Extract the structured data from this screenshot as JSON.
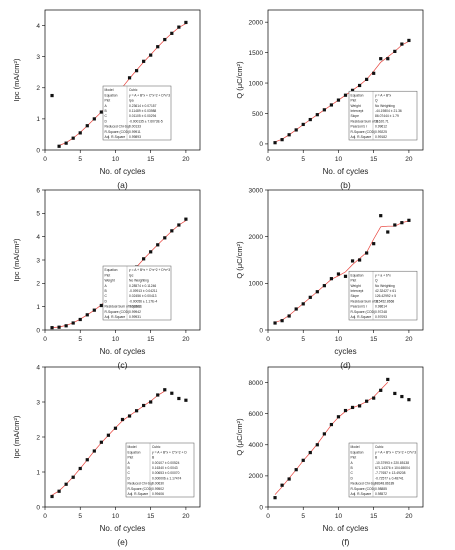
{
  "chart_data": [
    {
      "type": "scatter",
      "panel_label": "(a)",
      "xlabel": "No. of cycles",
      "ylabel": "Ipc (mA/cm²)",
      "xlim": [
        0,
        22
      ],
      "ylim": [
        0,
        4.5
      ],
      "xticks": [
        0,
        5,
        10,
        15,
        20
      ],
      "yticks": [
        0,
        1,
        2,
        3,
        4
      ],
      "x": [
        1,
        2,
        3,
        4,
        5,
        6,
        7,
        8,
        9,
        10,
        11,
        12,
        13,
        14,
        15,
        16,
        17,
        18,
        19,
        20
      ],
      "y": [
        1.75,
        0.12,
        0.22,
        0.38,
        0.55,
        0.78,
        1.0,
        1.22,
        1.45,
        1.75,
        2.0,
        2.32,
        2.55,
        2.85,
        3.05,
        3.32,
        3.55,
        3.75,
        3.95,
        4.1
      ],
      "fit": {
        "from": 2,
        "to": 20
      },
      "stats_box": {
        "position": "center",
        "rows": [
          [
            "Model",
            "Cubic"
          ],
          [
            "Equation",
            "y = A + B*x + C*x^2 + D*x^3"
          ],
          [
            "Plot",
            "Ipa"
          ],
          [
            "A",
            "0.23614 ± 0.07157"
          ],
          [
            "B",
            "0.11489 ± 0.03988"
          ],
          [
            "C",
            "0.01105 ± 0.00294"
          ],
          [
            "D",
            "-0.000135 ± 7.6073E-5"
          ],
          [
            "Reduced Chi-Sqr",
            "0.00133"
          ],
          [
            "R-Square (COD)",
            "0.99911"
          ],
          [
            "Adj. R-Square",
            "0.99893"
          ]
        ]
      }
    },
    {
      "type": "scatter",
      "panel_label": "(b)",
      "xlabel": "No. of cycles",
      "ylabel": "Q (μC/cm²)",
      "xlim": [
        0,
        22
      ],
      "ylim": [
        -100,
        2200
      ],
      "xticks": [
        0,
        5,
        10,
        15,
        20
      ],
      "yticks": [
        0,
        500,
        1000,
        1500,
        2000
      ],
      "x": [
        1,
        2,
        3,
        4,
        5,
        6,
        7,
        8,
        9,
        10,
        11,
        12,
        13,
        14,
        15,
        16,
        17,
        18,
        19,
        20
      ],
      "y": [
        20,
        70,
        150,
        230,
        320,
        400,
        480,
        560,
        640,
        720,
        800,
        880,
        960,
        1060,
        1160,
        1400,
        1400,
        1520,
        1640,
        1700
      ],
      "fit": {
        "from": 1,
        "to": 20
      },
      "stats_box": {
        "position": "right",
        "rows": [
          [
            "Equation",
            "y = A + B*x"
          ],
          [
            "Plot",
            "Q"
          ],
          [
            "Weight",
            "No Weighting"
          ],
          [
            "Intercept",
            "-44.19804 ± 21.36"
          ],
          [
            "Slope",
            "86.07444 ± 1.79"
          ],
          [
            "Residual Sum of S",
            "31620.71"
          ],
          [
            "Pearson's r",
            "0.99612"
          ],
          [
            "R-Square (COD)",
            "0.99225"
          ],
          [
            "Adj. R-Square",
            "0.99182"
          ]
        ]
      }
    },
    {
      "type": "scatter",
      "panel_label": "(c)",
      "xlabel": "No. of cycles",
      "ylabel": "Ipc (mA/cm²)",
      "xlim": [
        0,
        22
      ],
      "ylim": [
        0,
        6
      ],
      "xticks": [
        0,
        5,
        10,
        15,
        20
      ],
      "yticks": [
        0,
        1,
        2,
        3,
        4,
        5,
        6
      ],
      "x": [
        1,
        2,
        3,
        4,
        5,
        6,
        7,
        8,
        9,
        10,
        11,
        12,
        13,
        14,
        15,
        16,
        17,
        18,
        19,
        20
      ],
      "y": [
        0.1,
        0.12,
        0.18,
        0.3,
        0.45,
        0.65,
        0.85,
        1.05,
        1.35,
        1.65,
        2.0,
        2.35,
        2.7,
        3.05,
        3.35,
        3.65,
        3.95,
        4.25,
        4.5,
        4.75
      ],
      "fit": {
        "from": 1,
        "to": 20
      },
      "stats_box": {
        "position": "center",
        "rows": [
          [
            "Equation",
            "y = A + B*x + C*x^2 + D*x^3"
          ],
          [
            "Plot",
            "Ipc"
          ],
          [
            "Weight",
            "No Weighting"
          ],
          [
            "A",
            "0.28574 ± 0.11246"
          ],
          [
            "B",
            "-0.09913 ± 0.04211"
          ],
          [
            "C",
            "0.02456 ± 0.00413"
          ],
          [
            "D",
            "-0.00056 ± 1.17E-4"
          ],
          [
            "Residual Sum of Squares",
            "0.01562"
          ],
          [
            "R-Square (COD)",
            "0.99942"
          ],
          [
            "Adj. R-Square",
            "0.99931"
          ]
        ]
      }
    },
    {
      "type": "scatter",
      "panel_label": "(d)",
      "xlabel": "cycles",
      "ylabel": "Q (μC/cm²)",
      "xlim": [
        0,
        22
      ],
      "ylim": [
        0,
        3000
      ],
      "xticks": [
        0,
        5,
        10,
        15,
        20
      ],
      "yticks": [
        0,
        1000,
        2000,
        3000
      ],
      "x": [
        1,
        2,
        3,
        4,
        5,
        6,
        7,
        8,
        9,
        10,
        11,
        12,
        13,
        14,
        15,
        16,
        17,
        18,
        19,
        20
      ],
      "y": [
        150,
        200,
        300,
        450,
        560,
        700,
        820,
        950,
        1100,
        1200,
        1150,
        1480,
        1500,
        1650,
        1850,
        2450,
        2100,
        2250,
        2300,
        2350
      ],
      "fit": {
        "from": 1,
        "to": 20
      },
      "stats_box": {
        "position": "right",
        "rows": [
          [
            "Equation",
            "y = a + b*x"
          ],
          [
            "Plot",
            "Q"
          ],
          [
            "Weight",
            "No Weighting"
          ],
          [
            "Intercept",
            "42.32427 ± 61"
          ],
          [
            "Slope",
            "126.42992 ± 5"
          ],
          [
            "Residual Sum of S",
            "315452.8668"
          ],
          [
            "Pearson's r",
            "0.98614"
          ],
          [
            "R-Square (COD)",
            "0.97248"
          ],
          [
            "Adj. R-Square",
            "0.97093"
          ]
        ]
      }
    },
    {
      "type": "scatter",
      "panel_label": "(e)",
      "xlabel": "No. of cycles",
      "ylabel": "Ipc (mA/cm²)",
      "xlim": [
        0,
        22
      ],
      "ylim": [
        0,
        4
      ],
      "xticks": [
        0,
        5,
        10,
        15,
        20
      ],
      "yticks": [
        0,
        1,
        2,
        3,
        4
      ],
      "x": [
        1,
        2,
        3,
        4,
        5,
        6,
        7,
        8,
        9,
        10,
        11,
        12,
        13,
        14,
        15,
        16,
        17,
        18,
        19,
        20
      ],
      "y": [
        0.3,
        0.45,
        0.65,
        0.85,
        1.1,
        1.35,
        1.6,
        1.85,
        2.05,
        2.25,
        2.5,
        2.6,
        2.75,
        2.9,
        3.0,
        3.2,
        3.35,
        3.25,
        3.1,
        3.05
      ],
      "fit": {
        "from": 1,
        "to": 17
      },
      "stats_box": {
        "position": "right",
        "rows": [
          [
            "Model",
            "Cubic"
          ],
          [
            "Equation",
            "y = A + B*x + C*x^2 + D"
          ],
          [
            "Plot",
            "B"
          ],
          [
            "A",
            "0.00107 ± 0.00524"
          ],
          [
            "B",
            "0.16340 ± 0.0043"
          ],
          [
            "C",
            "0.00653 ± 0.00070"
          ],
          [
            "D",
            "0.000006 ± 1.17474"
          ],
          [
            "Reduced Chi-Sqr",
            "0.00630"
          ],
          [
            "R-Square (COD)",
            "0.99502"
          ],
          [
            "Adj. R-Square",
            "0.99406"
          ]
        ]
      }
    },
    {
      "type": "scatter",
      "panel_label": "(f)",
      "xlabel": "No. of cycles",
      "ylabel": "Q (μC/cm²)",
      "xlim": [
        0,
        22
      ],
      "ylim": [
        0,
        9000
      ],
      "xticks": [
        0,
        5,
        10,
        15,
        20
      ],
      "yticks": [
        0,
        2000,
        4000,
        6000,
        8000
      ],
      "x": [
        1,
        2,
        3,
        4,
        5,
        6,
        7,
        8,
        9,
        10,
        11,
        12,
        13,
        14,
        15,
        16,
        17,
        18,
        19,
        20
      ],
      "y": [
        600,
        1400,
        1800,
        2400,
        3000,
        3500,
        4000,
        4700,
        5300,
        5800,
        6200,
        6400,
        6500,
        6800,
        7000,
        7500,
        8200,
        7300,
        7100,
        6900
      ],
      "fit": {
        "from": 1,
        "to": 17
      },
      "stats_box": {
        "position": "right",
        "rows": [
          [
            "Model",
            "Cubic"
          ],
          [
            "Equation",
            "y = A + B*x + C*x^2 + D*x^3"
          ],
          [
            "Plot",
            "B"
          ],
          [
            "A",
            "-10.37993 ± 220.85138"
          ],
          [
            "B",
            "671.14376 ± 104.65004"
          ],
          [
            "C",
            "-7.77657 ± 13.49208"
          ],
          [
            "D",
            "-0.72577 ± 0.48741"
          ],
          [
            "Reduced Chi-Sqr",
            "98348.86189"
          ],
          [
            "R-Square (COD)",
            "0.98885"
          ],
          [
            "Adj. R-Square",
            "0.98572"
          ]
        ]
      }
    }
  ]
}
